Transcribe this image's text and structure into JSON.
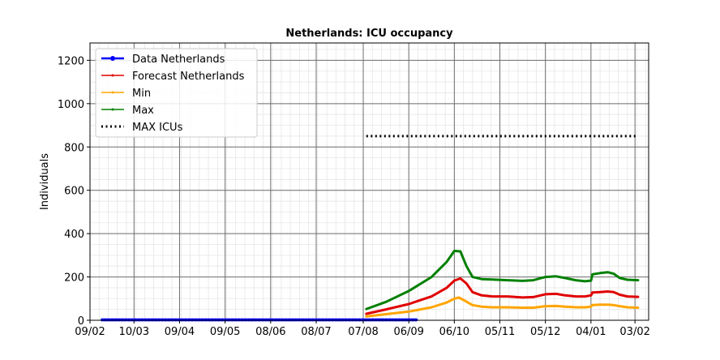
{
  "chart_data": {
    "type": "line",
    "title": "Netherlands: ICU occupancy",
    "xlabel": "",
    "ylabel": "Individuals",
    "ylim": [
      0,
      1280
    ],
    "xlim_days": [
      0,
      252
    ],
    "x_ticks": [
      {
        "day": 0,
        "label": "09/02"
      },
      {
        "day": 29,
        "label": "10/03"
      },
      {
        "day": 59,
        "label": "09/04"
      },
      {
        "day": 89,
        "label": "09/05"
      },
      {
        "day": 119,
        "label": "08/06"
      },
      {
        "day": 149,
        "label": "08/07"
      },
      {
        "day": 180,
        "label": "07/08"
      },
      {
        "day": 210,
        "label": "06/09"
      },
      {
        "day": 240,
        "label": "06/10"
      },
      {
        "day": 270,
        "label": "05/11"
      },
      {
        "day": 300,
        "label": "05/12"
      },
      {
        "day": 330,
        "label": "04/01"
      },
      {
        "day": 359,
        "label": "03/02"
      }
    ],
    "y_ticks": [
      0,
      200,
      400,
      600,
      800,
      1000,
      1200
    ],
    "grid": true,
    "legend": "top-left",
    "series": [
      {
        "name": "Data Netherlands",
        "color": "#0000ff",
        "style": "line-marker",
        "x": [
          8,
          20,
          30,
          40,
          60,
          90,
          120,
          150,
          170,
          195,
          215
        ],
        "y": [
          2,
          2,
          2,
          2,
          2,
          2,
          2,
          2,
          2,
          2,
          2
        ]
      },
      {
        "name": "Forecast Netherlands",
        "color": "#e00000",
        "style": "line",
        "x": [
          182,
          195,
          210,
          225,
          235,
          240,
          244,
          248,
          252,
          258,
          265,
          275,
          285,
          292,
          300,
          307,
          313,
          320,
          326,
          330,
          331,
          336,
          341,
          345,
          349,
          354,
          361
        ],
        "y": [
          30,
          50,
          75,
          110,
          150,
          183,
          193,
          170,
          130,
          115,
          110,
          110,
          105,
          107,
          120,
          122,
          115,
          110,
          110,
          115,
          128,
          130,
          133,
          130,
          118,
          110,
          108
        ]
      },
      {
        "name": "Min",
        "color": "#ffa500",
        "style": "line",
        "x": [
          182,
          195,
          210,
          225,
          235,
          240,
          243,
          247,
          252,
          258,
          265,
          275,
          285,
          292,
          300,
          307,
          313,
          320,
          326,
          330,
          331,
          336,
          341,
          345,
          349,
          354,
          361
        ],
        "y": [
          18,
          28,
          40,
          60,
          82,
          100,
          105,
          90,
          70,
          63,
          60,
          60,
          58,
          58,
          65,
          66,
          63,
          60,
          60,
          63,
          70,
          72,
          72,
          70,
          65,
          60,
          58
        ]
      },
      {
        "name": "Max",
        "color": "#008000",
        "style": "line",
        "x": [
          182,
          195,
          210,
          225,
          235,
          240,
          244,
          248,
          252,
          258,
          265,
          275,
          285,
          292,
          300,
          307,
          313,
          320,
          326,
          330,
          331,
          336,
          341,
          345,
          349,
          354,
          361
        ],
        "y": [
          52,
          85,
          135,
          200,
          270,
          320,
          318,
          250,
          200,
          190,
          188,
          185,
          182,
          185,
          200,
          203,
          195,
          185,
          180,
          183,
          212,
          218,
          222,
          215,
          195,
          187,
          185
        ]
      },
      {
        "name": "MAX ICUs",
        "color": "#000000",
        "style": "dotted",
        "x": [
          182,
          361
        ],
        "y": [
          850,
          850
        ]
      }
    ]
  }
}
